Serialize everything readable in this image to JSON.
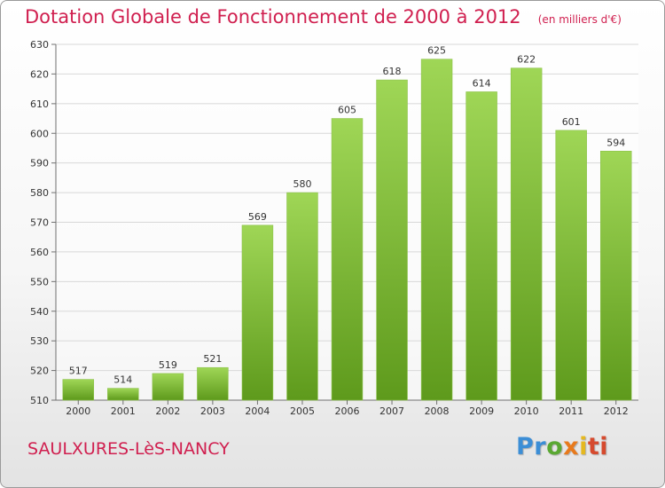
{
  "title": "Dotation Globale de Fonctionnement de 2000 à 2012",
  "unit_note": "(en milliers d'€)",
  "commune": "SAULXURES-LèS-NANCY",
  "logo_text": "Proxiti",
  "colors": {
    "title": "#d01f4f",
    "bar_top": "#9fd656",
    "bar_bottom": "#5e9a1c",
    "grid": "#d8d8d8",
    "axis": "#707070"
  },
  "chart_data": {
    "type": "bar",
    "title": "Dotation Globale de Fonctionnement de 2000 à 2012",
    "xlabel": "",
    "ylabel": "",
    "categories": [
      "2000",
      "2001",
      "2002",
      "2003",
      "2004",
      "2005",
      "2006",
      "2007",
      "2008",
      "2009",
      "2010",
      "2011",
      "2012"
    ],
    "values": [
      517,
      514,
      519,
      521,
      569,
      580,
      605,
      618,
      625,
      614,
      622,
      601,
      594
    ],
    "ylim": [
      510,
      630
    ],
    "yticks": [
      510,
      520,
      530,
      540,
      550,
      560,
      570,
      580,
      590,
      600,
      610,
      620,
      630
    ],
    "grid": true,
    "data_labels": true
  }
}
